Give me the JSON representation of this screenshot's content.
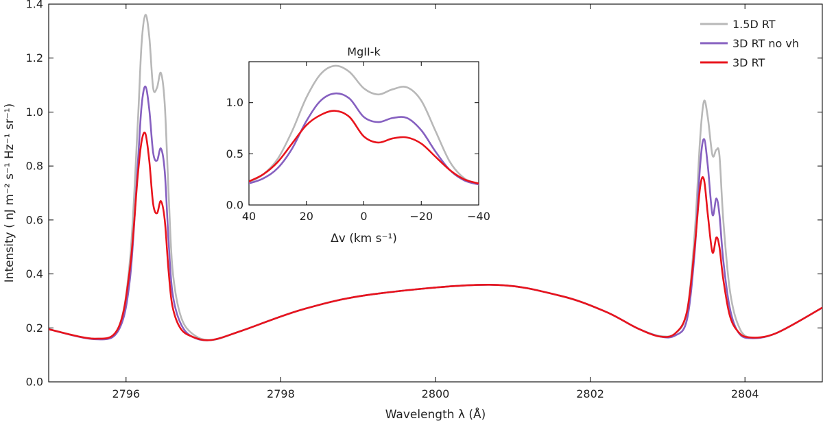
{
  "chart_data": [
    {
      "type": "line",
      "title": "",
      "xlabel": "Wavelength λ (Å)",
      "ylabel": "Intensity ( nJ m⁻² s⁻¹ Hz⁻¹ sr⁻¹)",
      "xlim": [
        2795.0,
        2805.0
      ],
      "ylim": [
        0.0,
        1.4
      ],
      "xticks": [
        2796,
        2798,
        2800,
        2802,
        2804
      ],
      "xtick_labels": [
        "2796",
        "2798",
        "2800",
        "2802",
        "2804"
      ],
      "yticks": [
        0.0,
        0.2,
        0.4,
        0.6,
        0.8,
        1.0,
        1.2,
        1.4
      ],
      "ytick_labels": [
        "0.0",
        "0.2",
        "0.4",
        "0.6",
        "0.8",
        "1.0",
        "1.2",
        "1.4"
      ],
      "grid": false,
      "legend_position": "top-right",
      "series": [
        {
          "name": "1.5D RT",
          "color": "#b8b8b8",
          "x": [
            2795.0,
            2795.6,
            2795.9,
            2796.05,
            2796.15,
            2796.2,
            2796.25,
            2796.3,
            2796.35,
            2796.4,
            2796.45,
            2796.5,
            2796.55,
            2796.6,
            2796.7,
            2796.85,
            2797.1,
            2797.5,
            2798.3,
            2799.2,
            2800.7,
            2801.6,
            2802.2,
            2802.6,
            2802.9,
            2803.1,
            2803.25,
            2803.35,
            2803.42,
            2803.47,
            2803.52,
            2803.58,
            2803.63,
            2803.67,
            2803.72,
            2803.8,
            2803.9,
            2804.05,
            2804.4,
            2805.0
          ],
          "y": [
            0.195,
            0.16,
            0.2,
            0.45,
            0.95,
            1.25,
            1.36,
            1.28,
            1.09,
            1.09,
            1.145,
            1.03,
            0.7,
            0.42,
            0.25,
            0.18,
            0.155,
            0.19,
            0.27,
            0.325,
            0.36,
            0.32,
            0.26,
            0.2,
            0.17,
            0.18,
            0.26,
            0.55,
            0.9,
            1.04,
            0.98,
            0.84,
            0.86,
            0.84,
            0.6,
            0.35,
            0.22,
            0.165,
            0.18,
            0.275
          ]
        },
        {
          "name": "3D RT no vh",
          "color": "#8660c0",
          "x": [
            2795.0,
            2795.6,
            2795.9,
            2796.05,
            2796.15,
            2796.2,
            2796.25,
            2796.3,
            2796.35,
            2796.4,
            2796.45,
            2796.5,
            2796.55,
            2796.6,
            2796.7,
            2796.85,
            2797.1,
            2797.5,
            2798.3,
            2799.2,
            2800.7,
            2801.6,
            2802.2,
            2802.6,
            2802.9,
            2803.1,
            2803.25,
            2803.35,
            2803.42,
            2803.47,
            2803.52,
            2803.58,
            2803.63,
            2803.67,
            2803.72,
            2803.8,
            2803.9,
            2804.05,
            2804.4,
            2805.0
          ],
          "y": [
            0.195,
            0.158,
            0.19,
            0.38,
            0.8,
            1.02,
            1.095,
            1.01,
            0.85,
            0.82,
            0.865,
            0.78,
            0.52,
            0.33,
            0.22,
            0.168,
            0.155,
            0.19,
            0.27,
            0.325,
            0.36,
            0.32,
            0.26,
            0.2,
            0.168,
            0.172,
            0.23,
            0.48,
            0.8,
            0.9,
            0.8,
            0.62,
            0.68,
            0.62,
            0.45,
            0.28,
            0.19,
            0.162,
            0.18,
            0.275
          ]
        },
        {
          "name": "3D RT",
          "color": "#e8141c",
          "x": [
            2795.0,
            2795.6,
            2795.9,
            2796.05,
            2796.15,
            2796.2,
            2796.25,
            2796.3,
            2796.35,
            2796.4,
            2796.45,
            2796.5,
            2796.55,
            2796.6,
            2796.7,
            2796.85,
            2797.1,
            2797.5,
            2798.3,
            2799.2,
            2800.7,
            2801.6,
            2802.2,
            2802.6,
            2802.9,
            2803.1,
            2803.25,
            2803.35,
            2803.42,
            2803.47,
            2803.52,
            2803.58,
            2803.63,
            2803.67,
            2803.72,
            2803.8,
            2803.9,
            2804.05,
            2804.4,
            2805.0
          ],
          "y": [
            0.195,
            0.16,
            0.2,
            0.42,
            0.76,
            0.89,
            0.92,
            0.82,
            0.66,
            0.625,
            0.67,
            0.6,
            0.41,
            0.28,
            0.2,
            0.168,
            0.155,
            0.19,
            0.27,
            0.325,
            0.36,
            0.32,
            0.26,
            0.2,
            0.168,
            0.18,
            0.26,
            0.5,
            0.72,
            0.75,
            0.62,
            0.48,
            0.535,
            0.5,
            0.38,
            0.25,
            0.19,
            0.165,
            0.18,
            0.275
          ]
        }
      ]
    },
    {
      "type": "line",
      "title": "MgII-k",
      "xlabel": "Δv (km s⁻¹)",
      "ylabel": "",
      "xlim": [
        40,
        -40
      ],
      "ylim": [
        0.0,
        1.4
      ],
      "xticks": [
        40,
        20,
        0,
        -20,
        -40
      ],
      "xtick_labels": [
        "40",
        "20",
        "0",
        "−20",
        "−40"
      ],
      "yticks": [
        0.0,
        0.5,
        1.0
      ],
      "ytick_labels": [
        "0.0",
        "0.5",
        "1.0"
      ],
      "grid": false,
      "series": [
        {
          "name": "1.5D RT",
          "color": "#b8b8b8",
          "x": [
            40,
            35,
            30,
            25,
            20,
            15,
            10,
            5,
            0,
            -5,
            -10,
            -15,
            -20,
            -25,
            -30,
            -35,
            -40
          ],
          "y": [
            0.22,
            0.3,
            0.45,
            0.72,
            1.05,
            1.28,
            1.36,
            1.3,
            1.14,
            1.08,
            1.13,
            1.15,
            1.02,
            0.72,
            0.42,
            0.26,
            0.2
          ]
        },
        {
          "name": "3D RT no vh",
          "color": "#8660c0",
          "x": [
            40,
            35,
            30,
            25,
            20,
            15,
            10,
            5,
            0,
            -5,
            -10,
            -15,
            -20,
            -25,
            -30,
            -35,
            -40
          ],
          "y": [
            0.21,
            0.26,
            0.36,
            0.55,
            0.82,
            1.02,
            1.09,
            1.04,
            0.86,
            0.81,
            0.85,
            0.85,
            0.73,
            0.52,
            0.34,
            0.24,
            0.2
          ]
        },
        {
          "name": "3D RT",
          "color": "#e8141c",
          "x": [
            40,
            35,
            30,
            25,
            20,
            15,
            10,
            5,
            0,
            -5,
            -10,
            -15,
            -20,
            -25,
            -30,
            -35,
            -40
          ],
          "y": [
            0.23,
            0.3,
            0.42,
            0.6,
            0.78,
            0.88,
            0.92,
            0.86,
            0.67,
            0.61,
            0.65,
            0.66,
            0.6,
            0.47,
            0.34,
            0.25,
            0.21
          ]
        }
      ]
    }
  ]
}
